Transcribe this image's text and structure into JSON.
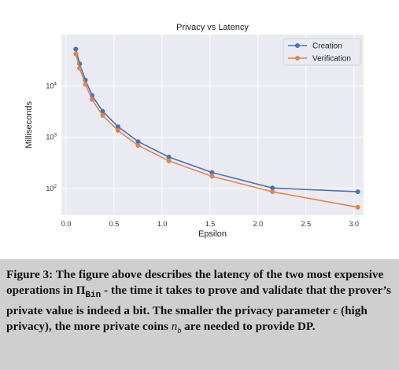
{
  "chart_data": {
    "type": "line",
    "title": "Privacy vs Latency",
    "xlabel": "Epsilon",
    "ylabel": "Milliseconds",
    "xlim": [
      -0.05,
      3.1
    ],
    "ylim": [
      30,
      100000
    ],
    "yscale": "log",
    "xticks": [
      "0.0",
      "0.5",
      "1.0",
      "1.5",
      "2.0",
      "2.5",
      "3.0"
    ],
    "yticks": [
      {
        "value": 100,
        "base": "10",
        "exp": "2"
      },
      {
        "value": 1000,
        "base": "10",
        "exp": "3"
      },
      {
        "value": 10000,
        "base": "10",
        "exp": "4"
      }
    ],
    "grid": true,
    "legend_position": "top-right",
    "x": [
      0.1,
      0.14,
      0.2,
      0.27,
      0.38,
      0.54,
      0.75,
      1.07,
      1.52,
      2.15,
      3.04
    ],
    "series": [
      {
        "name": "Creation",
        "color": "#4c72b0",
        "values": [
          52000,
          27000,
          13000,
          6500,
          3200,
          1600,
          820,
          410,
          205,
          102,
          86
        ]
      },
      {
        "name": "Verification",
        "color": "#dd8452",
        "values": [
          42000,
          22000,
          10800,
          5400,
          2650,
          1350,
          690,
          345,
          172,
          86,
          43
        ]
      }
    ]
  },
  "caption": {
    "prefix": "Figure 3: The figure above describes the latency of the two most expensive operations in Π",
    "subscript": "Bin",
    "middle": " - the time it takes to prove and validate that the prover’s private value is indeed a bit. The smaller the privacy parameter ",
    "epsilon": "ϵ",
    "middle2": " (high privacy), the more private coins ",
    "coin_var": "n",
    "coin_sub": "b",
    "suffix": " are needed to provide DP."
  }
}
